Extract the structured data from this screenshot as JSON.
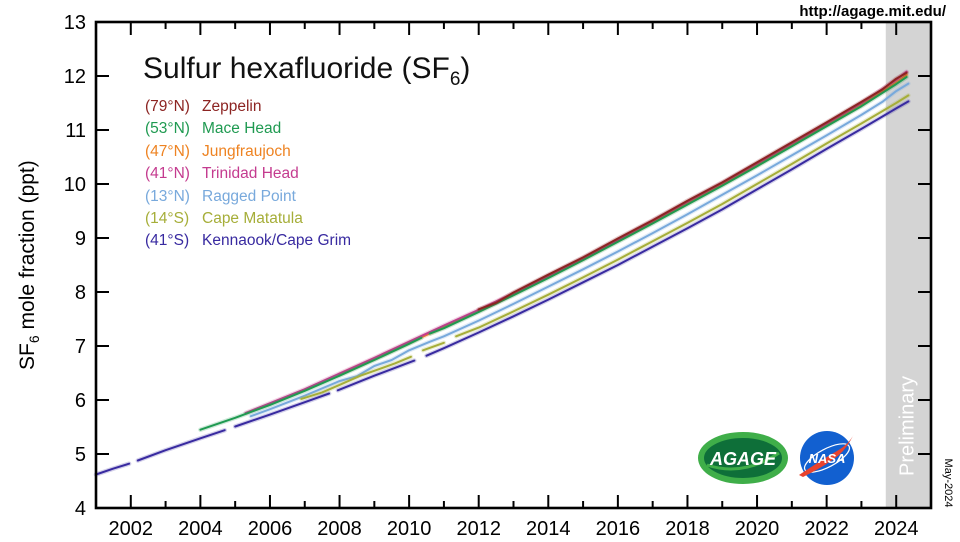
{
  "header": {
    "url": "http://agage.mit.edu/"
  },
  "title": {
    "main": "Sulfur hexafluoride (SF",
    "sub": "6",
    "close": ")"
  },
  "ylabel": {
    "pre": "SF",
    "sub": "6",
    "post": " mole fraction (ppt)"
  },
  "stamp": "May-2024",
  "logos": {
    "agage": "AGAGE",
    "nasa": "NASA",
    "agage_ring": "#3fae49",
    "agage_fill": "#0e6f39",
    "nasa_blue": "#1260d0",
    "nasa_red": "#e8432e"
  },
  "legend": {
    "items": [
      {
        "lat": "(79°N)",
        "name": "Zeppelin",
        "color": "#8c2422"
      },
      {
        "lat": "(53°N)",
        "name": "Mace Head",
        "color": "#1f9a51"
      },
      {
        "lat": "(47°N)",
        "name": "Jungfraujoch",
        "color": "#ee8322"
      },
      {
        "lat": "(41°N)",
        "name": "Trinidad Head",
        "color": "#c43b8f"
      },
      {
        "lat": "(13°N)",
        "name": "Ragged Point",
        "color": "#78a9dc"
      },
      {
        "lat": "(14°S)",
        "name": "Cape Matatula",
        "color": "#a6ae39"
      },
      {
        "lat": "(41°S)",
        "name": "Kennaook/Cape Grim",
        "color": "#382aa0"
      }
    ]
  },
  "chart_data": {
    "type": "line",
    "title": "Sulfur hexafluoride (SF6)",
    "xlabel": "",
    "ylabel": "SF6 mole fraction (ppt)",
    "xlim": [
      2001,
      2025
    ],
    "ylim": [
      4,
      13
    ],
    "grid": false,
    "legend_position": "top-left",
    "xticks_major": [
      2002,
      2004,
      2006,
      2008,
      2010,
      2012,
      2014,
      2016,
      2018,
      2020,
      2022,
      2024
    ],
    "xticks_minor": [
      2003,
      2005,
      2007,
      2009,
      2011,
      2013,
      2015,
      2017,
      2019,
      2021,
      2023
    ],
    "yticks": [
      4,
      5,
      6,
      7,
      8,
      9,
      10,
      11,
      12,
      13
    ],
    "preliminary": {
      "label": "Preliminary",
      "start": 2023.7,
      "end": 2025,
      "color": "#d4d4d4",
      "text_color": "#ffffff"
    },
    "series": [
      {
        "name": "Ragged Point",
        "lat": "(13°N)",
        "color": "#78a9dc",
        "segments": [
          [
            [
              2005.45,
              5.7
            ],
            [
              2006,
              5.83
            ],
            [
              2007,
              6.08
            ],
            [
              2008,
              6.35
            ],
            [
              2008.5,
              6.44
            ],
            [
              2009,
              6.63
            ],
            [
              2009.5,
              6.74
            ],
            [
              2010,
              6.92
            ],
            [
              2010.6,
              7.08
            ],
            [
              2011,
              7.18
            ],
            [
              2012,
              7.47
            ],
            [
              2013,
              7.78
            ],
            [
              2014,
              8.1
            ],
            [
              2015,
              8.42
            ],
            [
              2016,
              8.75
            ],
            [
              2017,
              9.09
            ],
            [
              2018,
              9.44
            ],
            [
              2019,
              9.8
            ],
            [
              2020,
              10.16
            ],
            [
              2021,
              10.53
            ],
            [
              2022,
              10.9
            ],
            [
              2023,
              11.28
            ],
            [
              2023.6,
              11.52
            ],
            [
              2024,
              11.72
            ],
            [
              2024.35,
              11.86
            ]
          ]
        ]
      },
      {
        "name": "Cape Matatula",
        "lat": "(14°S)",
        "color": "#a6ae39",
        "segments": [
          [
            [
              2006.9,
              6.02
            ],
            [
              2007.5,
              6.14
            ],
            [
              2008,
              6.28
            ],
            [
              2008.6,
              6.45
            ],
            [
              2009,
              6.54
            ],
            [
              2009.6,
              6.68
            ],
            [
              2010.05,
              6.8
            ]
          ],
          [
            [
              2010.4,
              6.92
            ],
            [
              2011.0,
              7.06
            ]
          ],
          [
            [
              2011.35,
              7.18
            ],
            [
              2012,
              7.34
            ],
            [
              2013,
              7.64
            ],
            [
              2014,
              7.95
            ],
            [
              2015,
              8.27
            ],
            [
              2016,
              8.6
            ],
            [
              2017,
              8.94
            ],
            [
              2018,
              9.28
            ],
            [
              2019,
              9.63
            ],
            [
              2020,
              10.0
            ],
            [
              2021,
              10.37
            ],
            [
              2022,
              10.75
            ],
            [
              2023,
              11.12
            ],
            [
              2024,
              11.5
            ],
            [
              2024.35,
              11.64
            ]
          ]
        ]
      },
      {
        "name": "Kennaook/Cape Grim",
        "lat": "(41°S)",
        "color": "#382aa0",
        "segments": [
          [
            [
              2001.0,
              4.62
            ],
            [
              2001.5,
              4.73
            ],
            [
              2001.95,
              4.82
            ]
          ],
          [
            [
              2002.2,
              4.88
            ],
            [
              2003,
              5.07
            ],
            [
              2004,
              5.29
            ],
            [
              2004.7,
              5.44
            ]
          ],
          [
            [
              2005.0,
              5.51
            ],
            [
              2006,
              5.73
            ],
            [
              2007,
              5.96
            ],
            [
              2007.7,
              6.12
            ]
          ],
          [
            [
              2007.95,
              6.18
            ],
            [
              2009,
              6.45
            ],
            [
              2010.15,
              6.73
            ]
          ],
          [
            [
              2010.5,
              6.82
            ],
            [
              2011,
              6.96
            ],
            [
              2012,
              7.25
            ],
            [
              2013,
              7.55
            ],
            [
              2014,
              7.86
            ],
            [
              2015,
              8.18
            ],
            [
              2016,
              8.5
            ],
            [
              2017,
              8.84
            ],
            [
              2018,
              9.18
            ],
            [
              2019,
              9.53
            ],
            [
              2020,
              9.9
            ],
            [
              2021,
              10.27
            ],
            [
              2022,
              10.65
            ],
            [
              2023,
              11.02
            ],
            [
              2024,
              11.4
            ],
            [
              2024.35,
              11.53
            ]
          ]
        ]
      },
      {
        "name": "Jungfraujoch",
        "lat": "(47°N)",
        "color": "#ee8322",
        "segments": [
          [
            [
              2008,
              6.47
            ],
            [
              2009,
              6.76
            ],
            [
              2010,
              7.06
            ],
            [
              2011,
              7.35
            ],
            [
              2012,
              7.65
            ],
            [
              2013,
              7.96
            ],
            [
              2014,
              8.28
            ],
            [
              2015,
              8.61
            ],
            [
              2016,
              8.95
            ],
            [
              2017,
              9.29
            ],
            [
              2018,
              9.64
            ],
            [
              2019,
              9.99
            ],
            [
              2020,
              10.35
            ],
            [
              2021,
              10.72
            ],
            [
              2022,
              11.09
            ],
            [
              2023,
              11.46
            ],
            [
              2024,
              11.88
            ],
            [
              2024.3,
              12.02
            ]
          ]
        ]
      },
      {
        "name": "Trinidad Head",
        "lat": "(41°N)",
        "color": "#c43b8f",
        "segments": [
          [
            [
              2005.3,
              5.76
            ],
            [
              2006,
              5.94
            ],
            [
              2007,
              6.2
            ],
            [
              2008,
              6.49
            ],
            [
              2009,
              6.78
            ],
            [
              2010,
              7.08
            ],
            [
              2011,
              7.38
            ],
            [
              2012,
              7.67
            ],
            [
              2013,
              7.98
            ],
            [
              2014,
              8.3
            ],
            [
              2015,
              8.63
            ],
            [
              2016,
              8.97
            ],
            [
              2017,
              9.32
            ],
            [
              2018,
              9.67
            ],
            [
              2019,
              10.02
            ],
            [
              2020,
              10.38
            ],
            [
              2021,
              10.75
            ],
            [
              2022,
              11.12
            ],
            [
              2023,
              11.5
            ],
            [
              2024,
              11.93
            ],
            [
              2024.3,
              12.08
            ]
          ]
        ]
      },
      {
        "name": "Mace Head",
        "lat": "(53°N)",
        "color": "#1f9a51",
        "segments": [
          [
            [
              2004,
              5.45
            ],
            [
              2005,
              5.67
            ],
            [
              2006,
              5.91
            ],
            [
              2007,
              6.17
            ],
            [
              2008,
              6.45
            ],
            [
              2009,
              6.74
            ],
            [
              2010,
              7.04
            ],
            [
              2010.35,
              7.15
            ]
          ],
          [
            [
              2010.6,
              7.23
            ],
            [
              2011,
              7.33
            ],
            [
              2012,
              7.63
            ],
            [
              2013,
              7.94
            ],
            [
              2014,
              8.26
            ],
            [
              2015,
              8.59
            ],
            [
              2016,
              8.93
            ],
            [
              2017,
              9.27
            ],
            [
              2018,
              9.62
            ],
            [
              2019,
              9.97
            ],
            [
              2020,
              10.33
            ],
            [
              2021,
              10.7
            ],
            [
              2022,
              11.07
            ],
            [
              2023,
              11.44
            ],
            [
              2024,
              11.85
            ],
            [
              2024.3,
              11.98
            ]
          ]
        ]
      },
      {
        "name": "Zeppelin",
        "lat": "(79°N)",
        "color": "#8c2422",
        "segments": [
          [
            [
              2012,
              7.68
            ],
            [
              2012.5,
              7.8
            ],
            [
              2013,
              7.99
            ],
            [
              2014,
              8.32
            ],
            [
              2015,
              8.64
            ],
            [
              2016,
              8.99
            ],
            [
              2017,
              9.33
            ],
            [
              2018,
              9.69
            ],
            [
              2019,
              10.03
            ],
            [
              2020,
              10.4
            ],
            [
              2021,
              10.77
            ],
            [
              2022,
              11.14
            ],
            [
              2023,
              11.52
            ],
            [
              2023.6,
              11.75
            ],
            [
              2024,
              11.95
            ],
            [
              2024.3,
              12.06
            ]
          ]
        ]
      }
    ]
  }
}
